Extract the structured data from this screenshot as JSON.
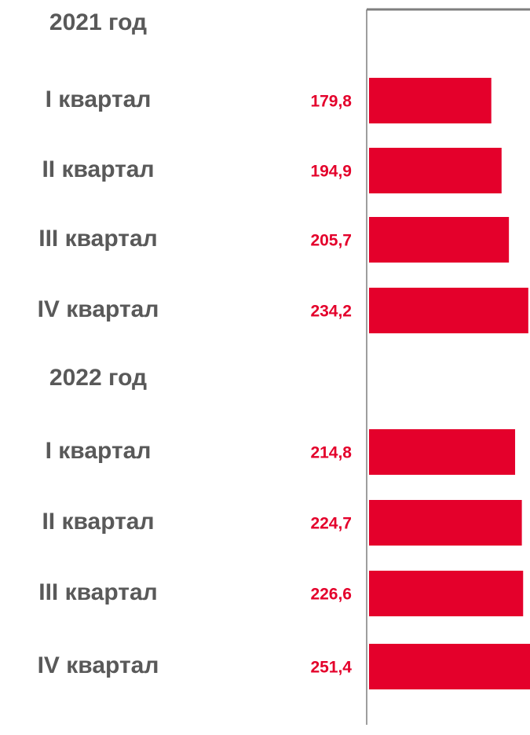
{
  "chart_data": {
    "type": "hbar",
    "categories": [
      "2021 год",
      "I квартал",
      "II квартал",
      "III квартал",
      "IV квартал",
      "2022 год",
      "I квартал",
      "II квартал",
      "III квартал",
      "IV квартал"
    ],
    "values": [
      null,
      179.8,
      194.9,
      205.7,
      234.2,
      null,
      214.8,
      224.7,
      226.6,
      251.4
    ],
    "value_labels": [
      null,
      "179,8",
      "194,9",
      "205,7",
      "234,2",
      null,
      "214,8",
      "224,7",
      "226,6",
      "251,4"
    ],
    "color": "#e4002b",
    "xlim": [
      0,
      236.7
    ]
  }
}
